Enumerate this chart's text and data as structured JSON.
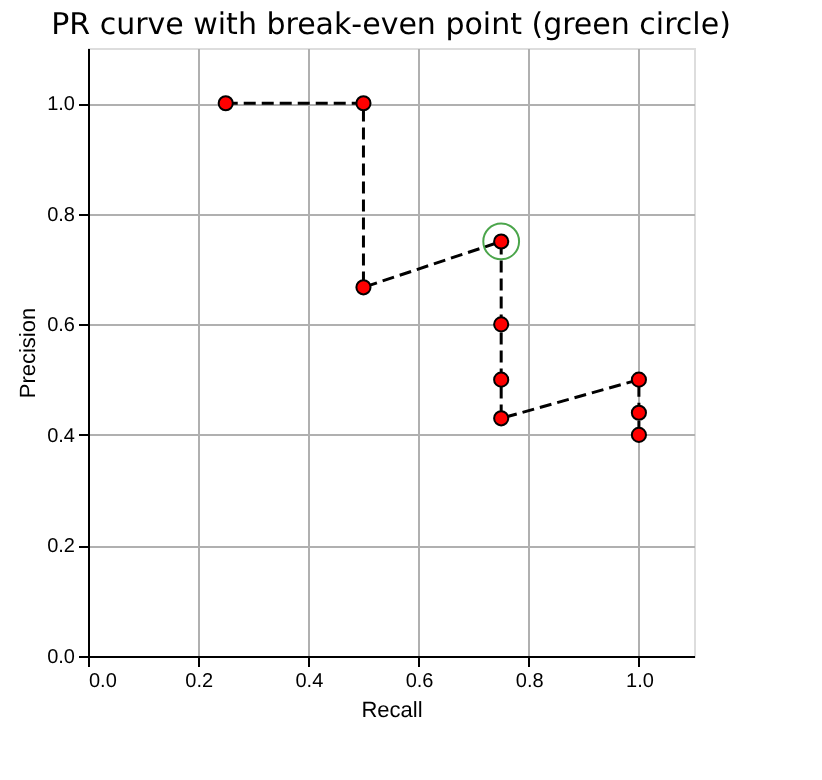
{
  "chart_data": {
    "type": "line",
    "title": "PR curve with break-even point (green circle)",
    "xlabel": "Recall",
    "ylabel": "Precision",
    "xlim": [
      0,
      1.1
    ],
    "ylim": [
      0,
      1.1
    ],
    "xticks": [
      {
        "value": 0,
        "label": "0.0"
      },
      0.2,
      0.4,
      0.6,
      0.8,
      {
        "value": 1,
        "label": "1.0"
      }
    ],
    "yticks": [
      {
        "value": 0,
        "label": "0.0"
      },
      0.2,
      0.4,
      0.6,
      0.8,
      {
        "value": 1,
        "label": "1.0"
      }
    ],
    "grid": true,
    "series": [
      {
        "type": "line",
        "color": "#000000",
        "line_style": "dashed",
        "x": [
          0.25,
          0.5,
          0.5,
          0.75,
          0.75,
          0.75,
          0.75,
          1.0,
          1.0,
          1.0
        ],
        "values": [
          1.0,
          1.0,
          0.667,
          0.75,
          0.6,
          0.5,
          0.43,
          0.5,
          0.44,
          0.4
        ]
      },
      {
        "type": "scatter",
        "color": "#ff0000",
        "marker": "circle",
        "x": [
          0.25,
          0.5,
          0.5,
          0.75,
          0.75,
          0.75,
          0.75,
          1.0,
          1.0,
          1.0
        ],
        "values": [
          1.0,
          1.0,
          0.667,
          0.75,
          0.6,
          0.5,
          0.43,
          0.5,
          0.44,
          0.4
        ]
      },
      {
        "type": "scatter",
        "color": "#008000",
        "marker": "circle",
        "x": [
          0.75
        ],
        "values": [
          0.75
        ]
      }
    ]
  }
}
